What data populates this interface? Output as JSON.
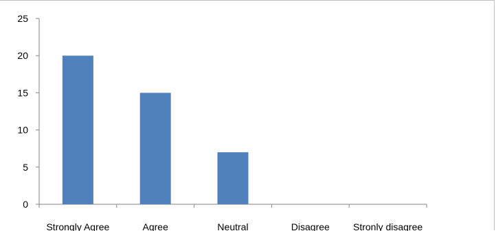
{
  "chart_data": {
    "type": "bar",
    "categories": [
      "Strongly Agree",
      "Agree",
      "Neutral",
      "Disagree",
      "Stronly disagree"
    ],
    "values": [
      20,
      15,
      7,
      0,
      0
    ],
    "title": "",
    "xlabel": "",
    "ylabel": "",
    "ylim": [
      0,
      25
    ],
    "yticks": [
      "0",
      "5",
      "10",
      "15",
      "20",
      "25"
    ],
    "grid": false,
    "legend": "none",
    "bar_color": "#4f81bd",
    "axis_color": "#868686"
  }
}
